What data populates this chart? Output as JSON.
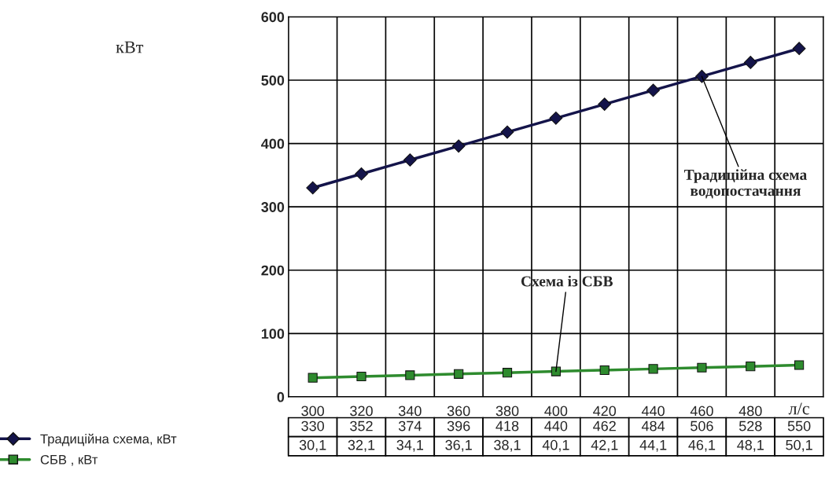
{
  "chart_data": {
    "type": "line",
    "xlabel": "л/с",
    "categories": [
      "300",
      "320",
      "340",
      "360",
      "380",
      "400",
      "420",
      "440",
      "460",
      "480",
      null
    ],
    "series": [
      {
        "name": "Традиційна схема, кВт",
        "color": "#14144a",
        "marker": "diamond",
        "values": [
          330,
          352,
          374,
          396,
          418,
          440,
          462,
          484,
          506,
          528,
          550
        ],
        "value_labels": [
          "330",
          "352",
          "374",
          "396",
          "418",
          "440",
          "462",
          "484",
          "506",
          "528",
          "550"
        ]
      },
      {
        "name": "СБВ , кВт",
        "color": "#2e8b2e",
        "marker": "square",
        "values": [
          30.1,
          32.1,
          34.1,
          36.1,
          38.1,
          40.1,
          42.1,
          44.1,
          46.1,
          48.1,
          50.1
        ],
        "value_labels": [
          "30,1",
          "32,1",
          "34,1",
          "36,1",
          "38,1",
          "40,1",
          "42,1",
          "44,1",
          "46,1",
          "48,1",
          "50,1"
        ]
      }
    ],
    "ylim": [
      0,
      600
    ],
    "yticks": [
      0,
      100,
      200,
      300,
      400,
      500,
      600
    ],
    "grid": true,
    "legend": "bottom",
    "annotations": [
      {
        "text": "Традиційна схема\nводопостачання",
        "x": "460",
        "y": 506
      },
      {
        "text": "Схема із СБВ",
        "x": "400",
        "y": 40.1
      },
      "кВт"
    ]
  }
}
